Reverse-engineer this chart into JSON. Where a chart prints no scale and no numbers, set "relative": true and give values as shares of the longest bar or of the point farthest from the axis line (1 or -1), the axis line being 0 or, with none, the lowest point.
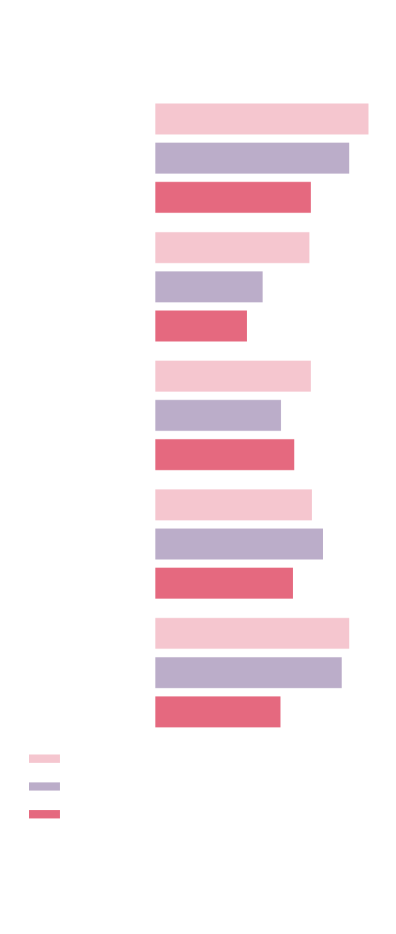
{
  "chart_data": {
    "type": "bar",
    "orientation": "horizontal",
    "relative": true,
    "categories": [
      null,
      null,
      null,
      null,
      null
    ],
    "series": [
      {
        "color": "#f5c6cf",
        "values": [
          1,
          0.723,
          0.729,
          0.735,
          0.91
        ]
      },
      {
        "color": "#bbadc9",
        "values": [
          0.91,
          0.503,
          0.59,
          0.787,
          0.874
        ]
      },
      {
        "color": "#e5697f",
        "values": [
          0.729,
          0.429,
          0.652,
          0.645,
          0.587
        ]
      }
    ]
  }
}
